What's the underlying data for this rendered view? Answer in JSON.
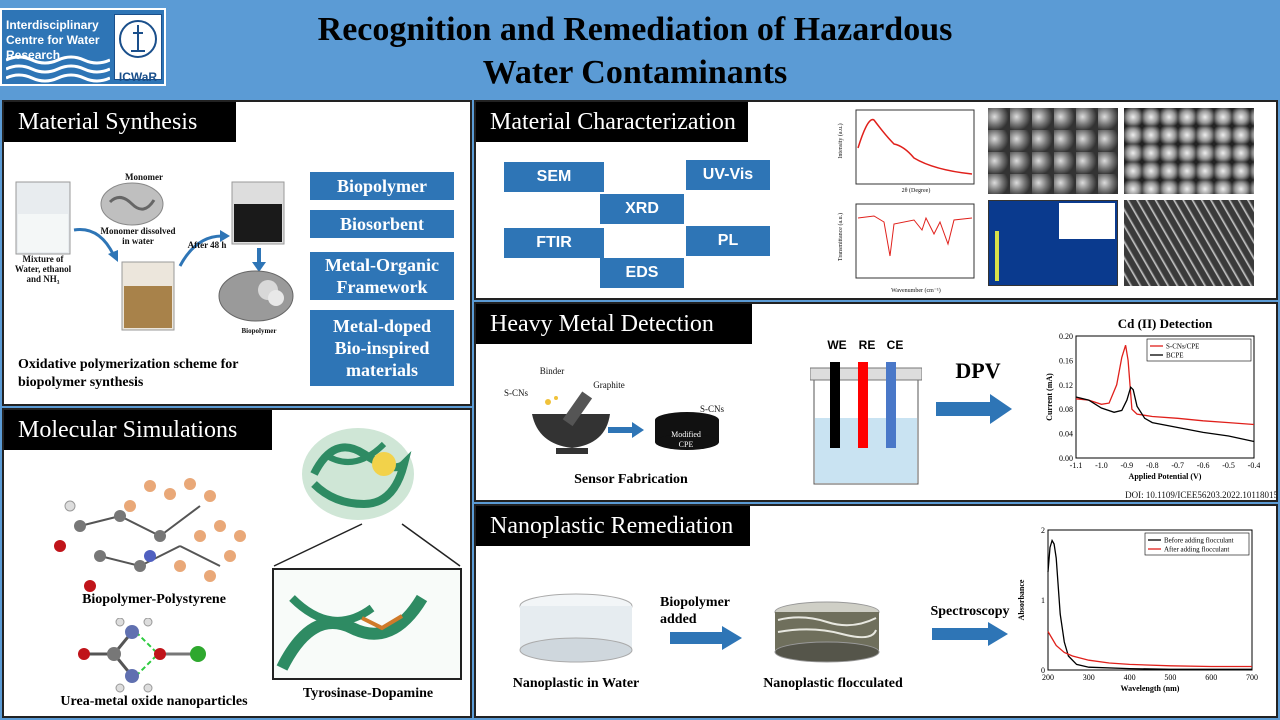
{
  "header": {
    "org_name": "Interdisciplinary Centre for Water Research",
    "org_brand": "ICWaR",
    "title_line1": "Recognition and Remediation of Hazardous",
    "title_line2": "Water Contaminants"
  },
  "synthesis": {
    "heading": "Material Synthesis",
    "mixture_label": "Mixture of Water, ethanol and NH₃",
    "monomer_label": "Monomer",
    "monomer_dissolved": "Monomer dissolved in water",
    "after_48h": "After 48 h",
    "biopolymer_label": "Biopolymer",
    "caption": "Oxidative polymerization scheme for biopolymer synthesis",
    "materials": [
      "Biopolymer",
      "Biosorbent",
      "Metal-Organic Framework",
      "Metal-doped Bio-inspired materials"
    ]
  },
  "simulation": {
    "heading": "Molecular Simulations",
    "label_bp_ps": "Biopolymer-Polystyrene",
    "label_urea": "Urea-metal oxide nanoparticles",
    "label_tyro": "Tyrosinase-Dopamine"
  },
  "characterization": {
    "heading": "Material Characterization",
    "techniques": [
      "SEM",
      "UV-Vis",
      "XRD",
      "FTIR",
      "PL",
      "EDS"
    ],
    "xrd_xlabel": "2θ (Degree)",
    "xrd_ylabel": "Intensity (a.u.)",
    "ftir_xlabel": "Wavenumber (cm⁻¹)",
    "ftir_ylabel": "Transmittance (a.u.)"
  },
  "detection": {
    "heading": "Heavy Metal Detection",
    "binder": "Binder",
    "scns": "S-CNs",
    "graphite": "Graphite",
    "modified_cpe": "Modified CPE",
    "caption": "Sensor Fabrication",
    "electrodes": [
      "WE",
      "RE",
      "CE"
    ],
    "method": "DPV",
    "doi": "DOI: 10.1109/ICEE56203.2022.10118015"
  },
  "remediation": {
    "heading": "Nanoplastic Remediation",
    "label_water": "Nanoplastic in Water",
    "arrow1": "Biopolymer added",
    "label_floc": "Nanoplastic flocculated",
    "arrow2": "Spectroscopy"
  },
  "colors": {
    "header_bg": "#5b9bd5",
    "box_blue": "#2e75b6",
    "red_series": "#e0201b",
    "black_series": "#000000",
    "protein_green": "#2e8b63"
  },
  "chart_data": [
    {
      "type": "line",
      "title": "Cd (II) Detection",
      "xlabel": "Applied Potential (V)",
      "ylabel": "Current (mA)",
      "xlim": [
        -1.1,
        -0.4
      ],
      "ylim": [
        0,
        0.2
      ],
      "xticks": [
        "-1.1",
        "-1.0",
        "-0.9",
        "-0.8",
        "-0.7",
        "-0.6",
        "-0.5",
        "-0.4"
      ],
      "yticks": [
        "0.00",
        "0.04",
        "0.08",
        "0.12",
        "0.16",
        "0.20"
      ],
      "legend": "top-right",
      "series": [
        {
          "name": "S-CNs/CPE",
          "color": "#e0201b",
          "x": [
            -1.1,
            -1.05,
            -1.0,
            -0.97,
            -0.94,
            -0.92,
            -0.905,
            -0.895,
            -0.88,
            -0.86,
            -0.83,
            -0.8,
            -0.7,
            -0.6,
            -0.5,
            -0.4
          ],
          "y": [
            0.097,
            0.095,
            0.088,
            0.09,
            0.12,
            0.165,
            0.185,
            0.16,
            0.08,
            0.072,
            0.07,
            0.068,
            0.065,
            0.061,
            0.058,
            0.055
          ]
        },
        {
          "name": "BCPE",
          "color": "#000000",
          "x": [
            -1.1,
            -1.05,
            -1.0,
            -0.95,
            -0.92,
            -0.9,
            -0.885,
            -0.875,
            -0.86,
            -0.83,
            -0.8,
            -0.7,
            -0.6,
            -0.5,
            -0.4
          ],
          "y": [
            0.1,
            0.095,
            0.082,
            0.075,
            0.078,
            0.095,
            0.116,
            0.112,
            0.085,
            0.065,
            0.058,
            0.05,
            0.042,
            0.036,
            0.027
          ]
        }
      ]
    },
    {
      "type": "line",
      "xlabel": "Wavelength (nm)",
      "ylabel": "Absorbance",
      "xlim": [
        200,
        700
      ],
      "ylim": [
        0,
        2
      ],
      "xticks": [
        "200",
        "300",
        "400",
        "500",
        "600",
        "700"
      ],
      "yticks": [
        "0",
        "1",
        "2"
      ],
      "legend": "top-right",
      "series": [
        {
          "name": "Before adding flocculant",
          "color": "#000000",
          "x": [
            200,
            205,
            210,
            215,
            220,
            225,
            230,
            240,
            250,
            270,
            300,
            400,
            500,
            600,
            700
          ],
          "y": [
            1.4,
            1.75,
            1.85,
            1.8,
            1.6,
            1.2,
            0.8,
            0.4,
            0.2,
            0.08,
            0.04,
            0.02,
            0.01,
            0.01,
            0.01
          ]
        },
        {
          "name": "After adding flocculant",
          "color": "#e0201b",
          "x": [
            200,
            210,
            220,
            240,
            260,
            280,
            300,
            350,
            400,
            500,
            600,
            700
          ],
          "y": [
            0.55,
            0.45,
            0.35,
            0.25,
            0.2,
            0.17,
            0.14,
            0.1,
            0.08,
            0.06,
            0.05,
            0.05
          ]
        }
      ]
    }
  ]
}
